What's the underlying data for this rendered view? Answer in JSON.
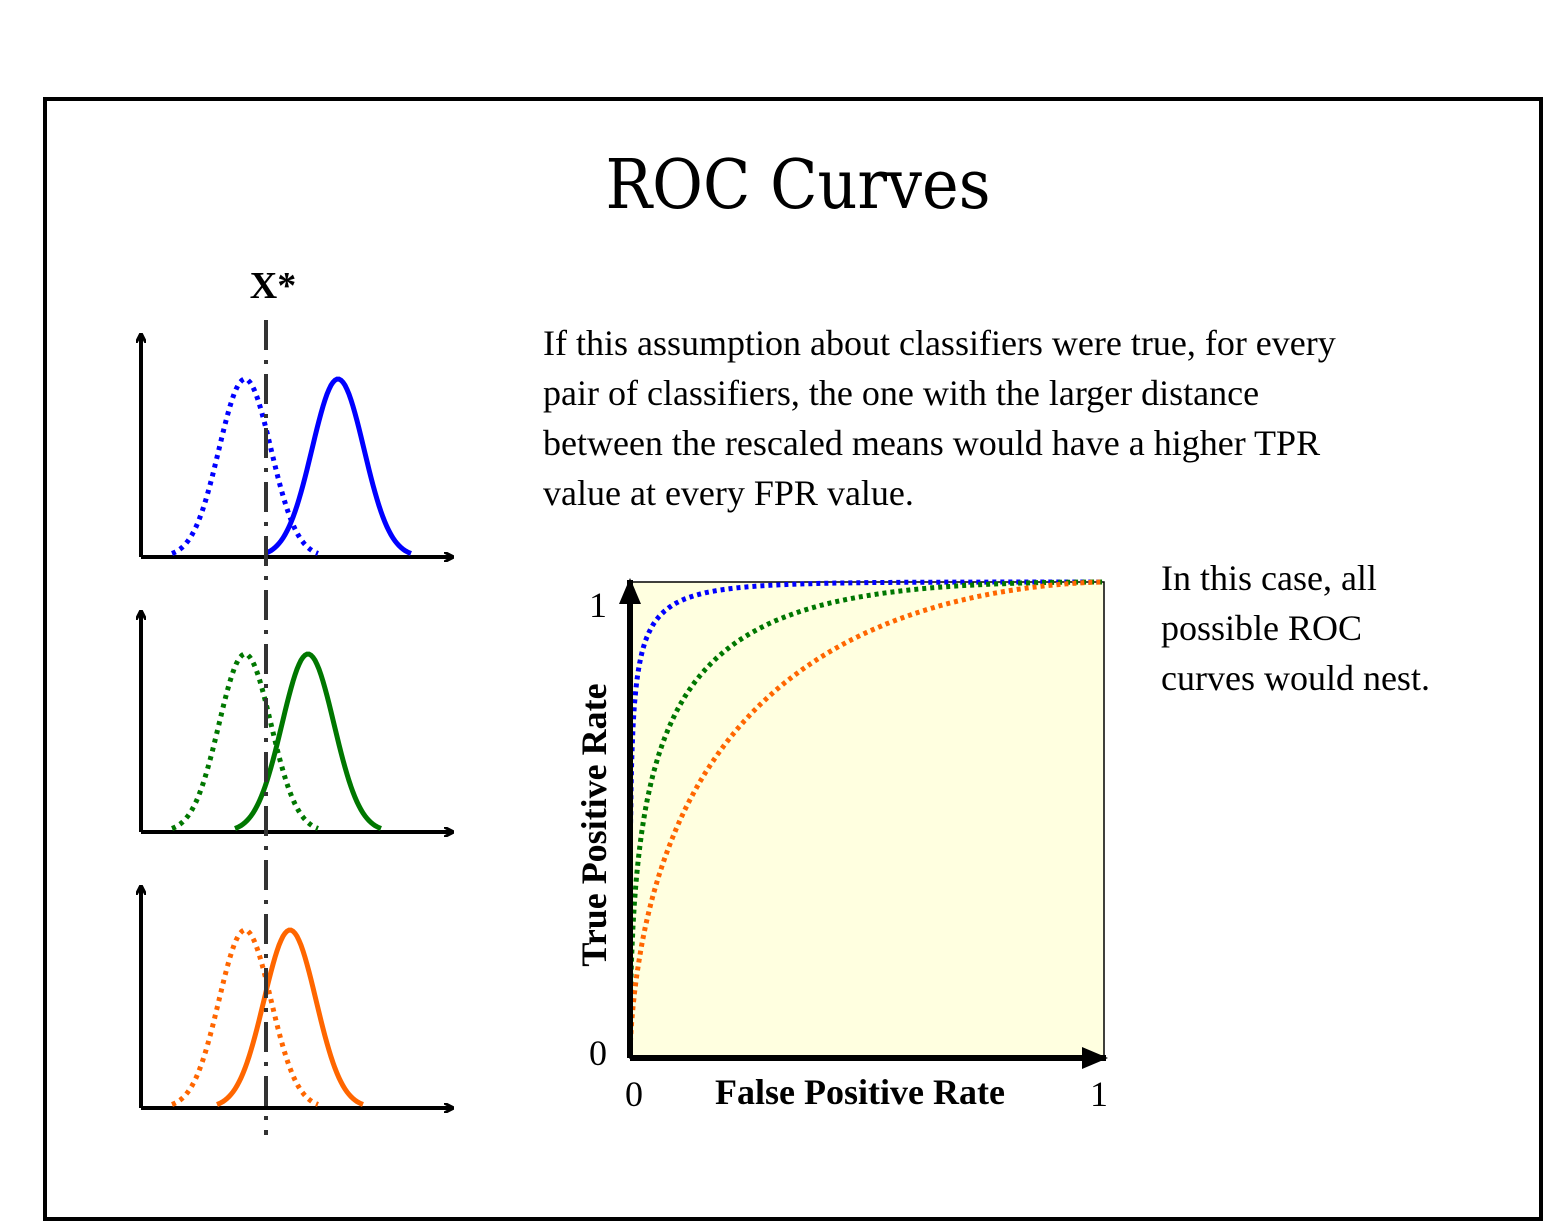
{
  "title": "ROC Curves",
  "threshold_label": "X*",
  "paragraph": [
    "If this assumption about classifiers were true, for every",
    "pair of classifiers, the one with the larger distance",
    "between the rescaled means would have a higher TPR",
    "value at every FPR value."
  ],
  "note": [
    "In this case, all",
    "possible ROC",
    "curves would nest."
  ],
  "roc": {
    "x_label": "False Positive Rate",
    "y_label": "True Positive Rate",
    "x_min": "0",
    "x_max": "1",
    "y_min": "0",
    "y_max": "1"
  }
}
